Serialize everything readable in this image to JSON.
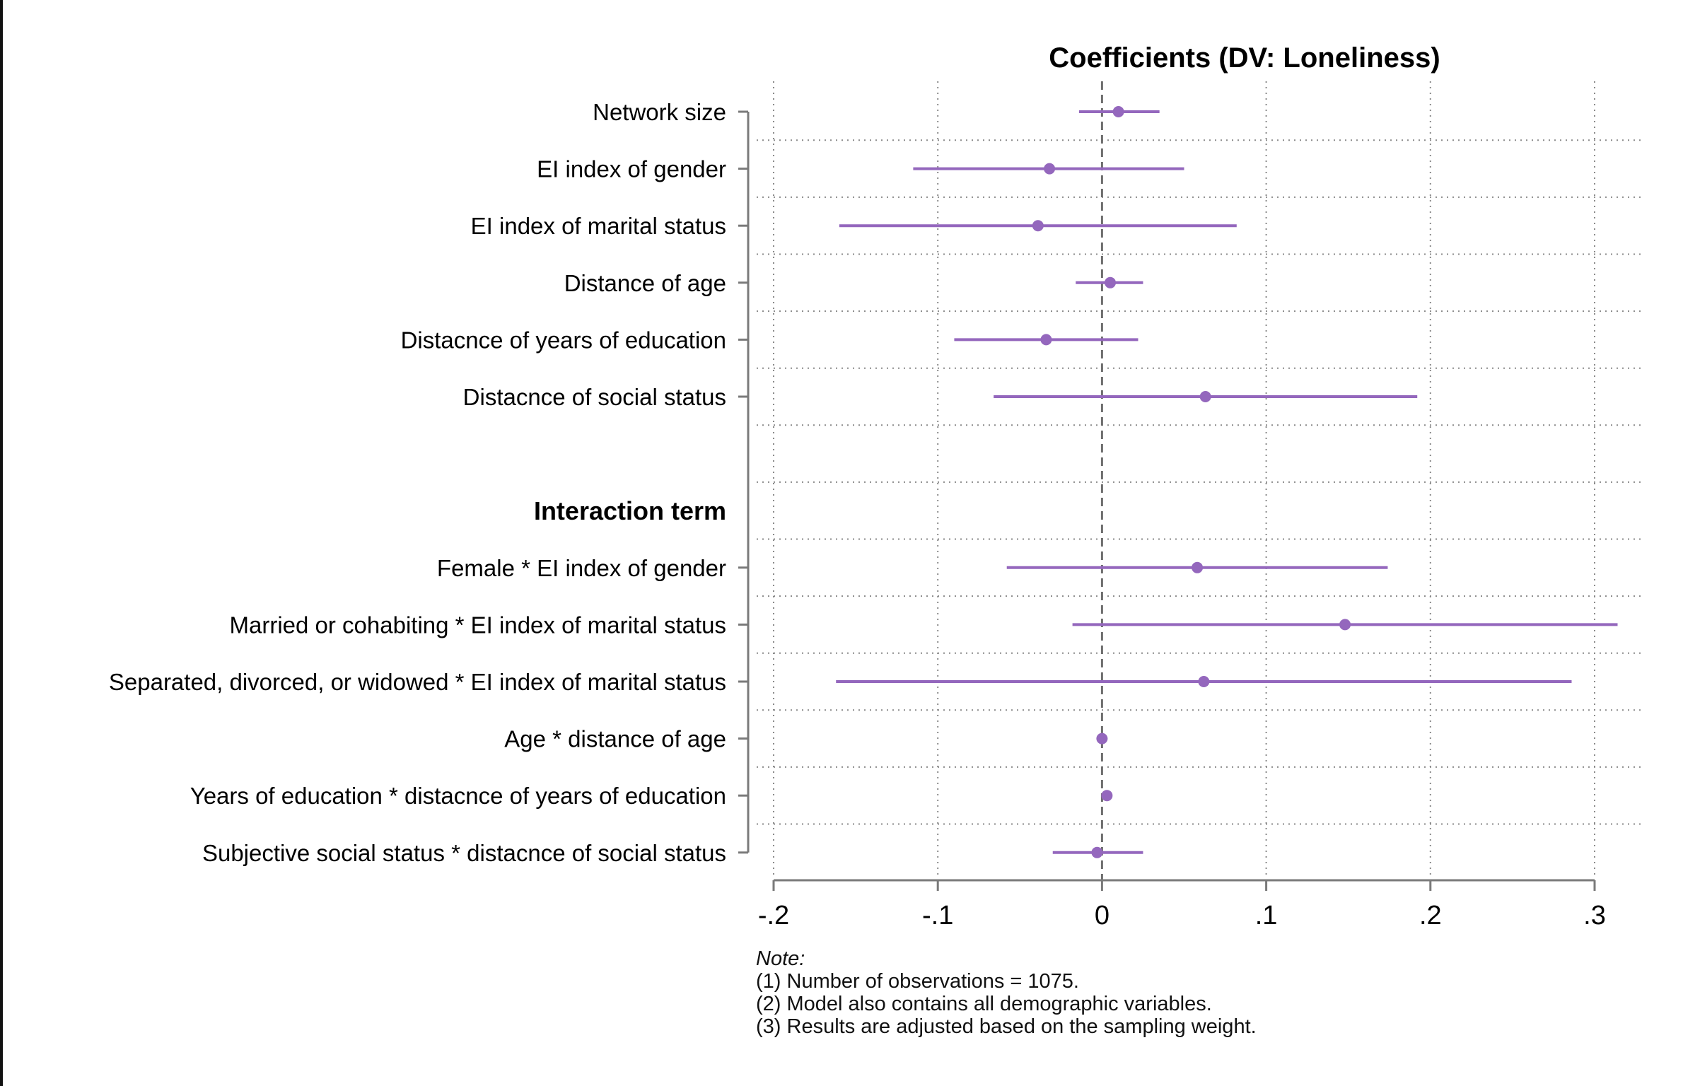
{
  "chart_data": {
    "type": "scatter",
    "subtype": "coefficient plot with confidence intervals",
    "title": "Coefficients (DV: Loneliness)",
    "xlabel": "",
    "ylabel": "",
    "xlim": [
      -0.2,
      0.3
    ],
    "x_ticks": [
      -0.2,
      -0.1,
      0,
      0.1,
      0.2,
      0.3
    ],
    "x_tick_labels": [
      "-.2",
      "-.1",
      "0",
      ".1",
      ".2",
      ".3"
    ],
    "reference_line": 0,
    "grid": true,
    "marker_color": "#9467bd",
    "group_headers": [
      {
        "label": "Interaction term",
        "row": 7
      }
    ],
    "rows": [
      {
        "label": "Network size",
        "coef": 0.01,
        "ci_low": -0.014,
        "ci_high": 0.035
      },
      {
        "label": "EI index of gender",
        "coef": -0.032,
        "ci_low": -0.115,
        "ci_high": 0.05
      },
      {
        "label": "EI index of marital status",
        "coef": -0.039,
        "ci_low": -0.16,
        "ci_high": 0.082
      },
      {
        "label": "Distance of age",
        "coef": 0.005,
        "ci_low": -0.016,
        "ci_high": 0.025
      },
      {
        "label": "Distacnce of years of education",
        "coef": -0.034,
        "ci_low": -0.09,
        "ci_high": 0.022
      },
      {
        "label": "Distacnce of social status",
        "coef": 0.063,
        "ci_low": -0.066,
        "ci_high": 0.192
      },
      {
        "label": "Female * EI index of gender",
        "coef": 0.058,
        "ci_low": -0.058,
        "ci_high": 0.174
      },
      {
        "label": "Married or cohabiting * EI index of marital status",
        "coef": 0.148,
        "ci_low": -0.018,
        "ci_high": 0.314
      },
      {
        "label": "Separated, divorced, or widowed * EI index of marital status",
        "coef": 0.062,
        "ci_low": -0.162,
        "ci_high": 0.286
      },
      {
        "label": "Age * distance of age",
        "coef": 0.0,
        "ci_low": -0.001,
        "ci_high": 0.001
      },
      {
        "label": "Years of education * distacnce of years of education",
        "coef": 0.003,
        "ci_low": 0.0,
        "ci_high": 0.006
      },
      {
        "label": "Subjective social status * distacnce of social status",
        "coef": -0.003,
        "ci_low": -0.03,
        "ci_high": 0.025
      }
    ]
  },
  "notes": {
    "title": "Note:",
    "lines": [
      "(1) Number of observations = 1075.",
      "(2) Model also contains all demographic variables.",
      "(3) Results are adjusted based on the sampling weight."
    ]
  }
}
